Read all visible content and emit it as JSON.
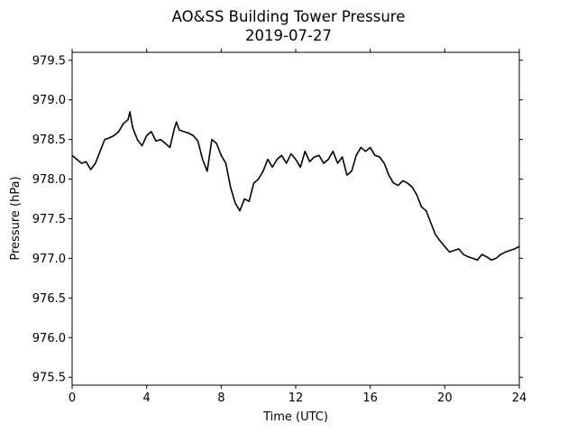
{
  "chart_data": {
    "type": "line",
    "title": "AO&SS Building Tower Pressure",
    "subtitle": "2019-07-27",
    "xlabel": "Time (UTC)",
    "ylabel": "Pressure (hPa)",
    "xlim": [
      0,
      24
    ],
    "ylim": [
      975.4,
      979.6
    ],
    "x_ticks": [
      0,
      4,
      8,
      12,
      16,
      20,
      24
    ],
    "x_tick_labels": [
      "0",
      "4",
      "8",
      "12",
      "16",
      "20",
      "24"
    ],
    "y_ticks": [
      975.5,
      976.0,
      976.5,
      977.0,
      977.5,
      978.0,
      978.5,
      979.0,
      979.5
    ],
    "y_tick_labels": [
      "975.5",
      "976.0",
      "976.5",
      "977.0",
      "977.5",
      "978.0",
      "978.5",
      "979.0",
      "979.5"
    ],
    "grid": false,
    "line_color": "#000000",
    "series": [
      {
        "x": [
          0,
          0.25,
          0.5,
          0.75,
          1.0,
          1.25,
          1.5,
          1.75,
          2.0,
          2.25,
          2.5,
          2.75,
          3.0,
          3.1,
          3.25,
          3.5,
          3.75,
          4.0,
          4.25,
          4.5,
          4.75,
          5.0,
          5.25,
          5.5,
          5.6,
          5.75,
          6.0,
          6.25,
          6.5,
          6.75,
          7.0,
          7.25,
          7.5,
          7.75,
          8.0,
          8.25,
          8.5,
          8.75,
          9.0,
          9.25,
          9.5,
          9.75,
          10.0,
          10.25,
          10.5,
          10.75,
          11.0,
          11.25,
          11.5,
          11.75,
          12.0,
          12.25,
          12.5,
          12.75,
          13.0,
          13.25,
          13.5,
          13.75,
          14.0,
          14.25,
          14.5,
          14.75,
          15.0,
          15.25,
          15.5,
          15.75,
          16.0,
          16.25,
          16.5,
          16.75,
          17.0,
          17.25,
          17.5,
          17.75,
          18.0,
          18.25,
          18.5,
          18.75,
          19.0,
          19.25,
          19.5,
          19.75,
          20.0,
          20.25,
          20.5,
          20.75,
          21.0,
          21.25,
          21.5,
          21.75,
          22.0,
          22.25,
          22.5,
          22.75,
          23.0,
          23.25,
          23.5,
          23.75,
          24.0
        ],
        "y": [
          978.3,
          978.25,
          978.2,
          978.22,
          978.12,
          978.2,
          978.35,
          978.5,
          978.52,
          978.55,
          978.6,
          978.7,
          978.75,
          978.85,
          978.65,
          978.5,
          978.42,
          978.55,
          978.6,
          978.48,
          978.5,
          978.45,
          978.4,
          978.65,
          978.72,
          978.62,
          978.6,
          978.58,
          978.55,
          978.48,
          978.25,
          978.1,
          978.5,
          978.45,
          978.3,
          978.2,
          977.9,
          977.7,
          977.6,
          977.75,
          977.72,
          977.95,
          978.0,
          978.1,
          978.25,
          978.15,
          978.25,
          978.3,
          978.2,
          978.32,
          978.25,
          978.15,
          978.35,
          978.22,
          978.28,
          978.3,
          978.2,
          978.25,
          978.35,
          978.2,
          978.28,
          978.05,
          978.1,
          978.3,
          978.4,
          978.35,
          978.4,
          978.3,
          978.28,
          978.2,
          978.05,
          977.95,
          977.92,
          977.98,
          977.95,
          977.9,
          977.8,
          977.65,
          977.6,
          977.45,
          977.3,
          977.22,
          977.15,
          977.08,
          977.1,
          977.12,
          977.05,
          977.02,
          977.0,
          976.98,
          977.05,
          977.02,
          976.98,
          977.0,
          977.05,
          977.08,
          977.1,
          977.12,
          977.15
        ]
      }
    ]
  }
}
